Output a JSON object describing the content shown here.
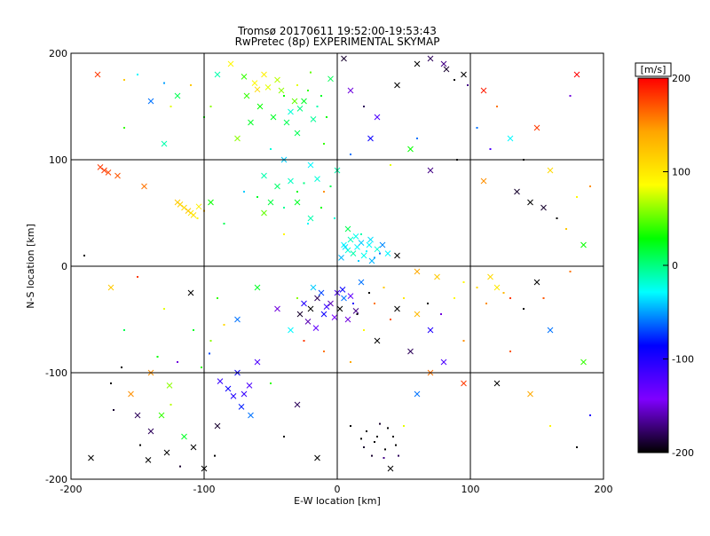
{
  "chart_data": {
    "type": "scatter",
    "title": "Tromsø 20170611 19:52:00-19:53:43",
    "subtitle": "RwPretec (8p) EXPERIMENTAL SKYMAP",
    "xlabel": "E-W location [km]",
    "ylabel": "N-S location [km]",
    "xlim": [
      -200,
      200
    ],
    "ylim": [
      -200,
      200
    ],
    "xticks": [
      "-200",
      "-100",
      "0",
      "100",
      "200"
    ],
    "yticks": [
      "-200",
      "-100",
      "0",
      "100",
      "200"
    ],
    "grid": true,
    "colorbar": {
      "label": "[m/s]",
      "range": [
        -200,
        200
      ],
      "ticks": [
        "200",
        "100",
        "0",
        "-100",
        "-200"
      ],
      "colors": [
        "#ff0000",
        "#ffa500",
        "#ffff00",
        "#00ff00",
        "#00ffff",
        "#0000ff",
        "#7f00ff",
        "#000000"
      ]
    },
    "markers": [
      "dot",
      "cross"
    ],
    "points": [
      [
        -180,
        180,
        180,
        1
      ],
      [
        -160,
        175,
        120,
        0
      ],
      [
        -130,
        172,
        -50,
        0
      ],
      [
        -120,
        160,
        10,
        1
      ],
      [
        -95,
        150,
        60,
        0
      ],
      [
        -80,
        190,
        90,
        1
      ],
      [
        -70,
        178,
        40,
        1
      ],
      [
        -60,
        166,
        110,
        1
      ],
      [
        -55,
        180,
        95,
        1
      ],
      [
        -45,
        175,
        70,
        1
      ],
      [
        -40,
        160,
        30,
        0
      ],
      [
        -35,
        145,
        -20,
        1
      ],
      [
        -30,
        170,
        80,
        0
      ],
      [
        -25,
        155,
        20,
        1
      ],
      [
        -20,
        182,
        50,
        0
      ],
      [
        -15,
        150,
        -10,
        0
      ],
      [
        -5,
        176,
        10,
        1
      ],
      [
        5,
        195,
        -190,
        1
      ],
      [
        10,
        165,
        -150,
        1
      ],
      [
        20,
        150,
        -180,
        0
      ],
      [
        30,
        140,
        -120,
        1
      ],
      [
        45,
        170,
        -200,
        1
      ],
      [
        60,
        120,
        -60,
        0
      ],
      [
        80,
        190,
        -170,
        1
      ],
      [
        95,
        180,
        -200,
        1
      ],
      [
        110,
        165,
        190,
        1
      ],
      [
        120,
        150,
        160,
        0
      ],
      [
        150,
        130,
        180,
        1
      ],
      [
        180,
        180,
        200,
        1
      ],
      [
        175,
        160,
        -150,
        0
      ],
      [
        -160,
        130,
        40,
        0
      ],
      [
        -130,
        115,
        -10,
        1
      ],
      [
        -100,
        140,
        30,
        0
      ],
      [
        -75,
        120,
        60,
        1
      ],
      [
        -65,
        135,
        20,
        1
      ],
      [
        -50,
        110,
        -20,
        0
      ],
      [
        -40,
        100,
        -40,
        1
      ],
      [
        -30,
        125,
        10,
        1
      ],
      [
        -20,
        95,
        -30,
        1
      ],
      [
        -10,
        115,
        40,
        0
      ],
      [
        0,
        90,
        -10,
        1
      ],
      [
        10,
        105,
        -60,
        0
      ],
      [
        25,
        120,
        -90,
        1
      ],
      [
        40,
        95,
        80,
        0
      ],
      [
        55,
        110,
        30,
        1
      ],
      [
        70,
        90,
        -170,
        1
      ],
      [
        90,
        100,
        -200,
        0
      ],
      [
        110,
        80,
        150,
        1
      ],
      [
        135,
        70,
        -190,
        1
      ],
      [
        160,
        90,
        110,
        1
      ],
      [
        -175,
        90,
        180,
        1
      ],
      [
        -165,
        85,
        170,
        1
      ],
      [
        -145,
        75,
        160,
        1
      ],
      [
        -120,
        60,
        120,
        1
      ],
      [
        -115,
        55,
        110,
        1
      ],
      [
        -110,
        50,
        100,
        1
      ],
      [
        -105,
        45,
        90,
        0
      ],
      [
        -95,
        60,
        30,
        1
      ],
      [
        -85,
        40,
        10,
        0
      ],
      [
        -70,
        70,
        -40,
        0
      ],
      [
        -55,
        50,
        50,
        1
      ],
      [
        -40,
        30,
        90,
        0
      ],
      [
        -30,
        60,
        20,
        1
      ],
      [
        -20,
        45,
        -10,
        1
      ],
      [
        -10,
        70,
        150,
        0
      ],
      [
        5,
        20,
        -30,
        1
      ],
      [
        8,
        15,
        -20,
        1
      ],
      [
        12,
        12,
        -10,
        1
      ],
      [
        15,
        18,
        -30,
        1
      ],
      [
        18,
        22,
        -40,
        1
      ],
      [
        20,
        10,
        -25,
        1
      ],
      [
        22,
        14,
        -30,
        0
      ],
      [
        25,
        25,
        -35,
        1
      ],
      [
        28,
        8,
        -50,
        0
      ],
      [
        30,
        16,
        -20,
        1
      ],
      [
        3,
        8,
        -45,
        1
      ],
      [
        10,
        25,
        -15,
        1
      ],
      [
        16,
        5,
        -40,
        0
      ],
      [
        24,
        20,
        -30,
        1
      ],
      [
        32,
        12,
        -60,
        0
      ],
      [
        45,
        10,
        -200,
        1
      ],
      [
        60,
        -5,
        140,
        1
      ],
      [
        75,
        -10,
        120,
        1
      ],
      [
        95,
        -15,
        90,
        0
      ],
      [
        115,
        -10,
        110,
        1
      ],
      [
        120,
        -20,
        100,
        1
      ],
      [
        130,
        -30,
        180,
        0
      ],
      [
        150,
        -15,
        -200,
        1
      ],
      [
        175,
        -5,
        160,
        0
      ],
      [
        185,
        20,
        30,
        1
      ],
      [
        -190,
        10,
        -200,
        0
      ],
      [
        -170,
        -20,
        120,
        1
      ],
      [
        -150,
        -10,
        180,
        0
      ],
      [
        -130,
        -40,
        80,
        0
      ],
      [
        -110,
        -25,
        -200,
        1
      ],
      [
        -90,
        -30,
        40,
        0
      ],
      [
        -75,
        -50,
        -60,
        1
      ],
      [
        -60,
        -20,
        20,
        1
      ],
      [
        -45,
        -40,
        -150,
        1
      ],
      [
        -30,
        -30,
        60,
        0
      ],
      [
        -25,
        -35,
        -100,
        1
      ],
      [
        -20,
        -40,
        -200,
        1
      ],
      [
        -15,
        -30,
        -180,
        1
      ],
      [
        -10,
        -45,
        -90,
        1
      ],
      [
        -5,
        -35,
        -160,
        1
      ],
      [
        0,
        -25,
        -120,
        1
      ],
      [
        2,
        -40,
        -200,
        1
      ],
      [
        5,
        -30,
        -60,
        1
      ],
      [
        8,
        -50,
        -150,
        1
      ],
      [
        12,
        -35,
        -100,
        0
      ],
      [
        15,
        -45,
        -200,
        0
      ],
      [
        -35,
        -60,
        -30,
        1
      ],
      [
        -25,
        -70,
        180,
        0
      ],
      [
        -10,
        -80,
        160,
        0
      ],
      [
        10,
        -90,
        140,
        0
      ],
      [
        20,
        -60,
        90,
        0
      ],
      [
        30,
        -70,
        -200,
        1
      ],
      [
        45,
        -40,
        -200,
        1
      ],
      [
        55,
        -80,
        -180,
        1
      ],
      [
        70,
        -60,
        -100,
        1
      ],
      [
        80,
        -90,
        -120,
        1
      ],
      [
        95,
        -70,
        150,
        0
      ],
      [
        130,
        -80,
        170,
        0
      ],
      [
        160,
        -60,
        -60,
        1
      ],
      [
        185,
        -90,
        40,
        1
      ],
      [
        -170,
        -110,
        -200,
        0
      ],
      [
        -150,
        -140,
        -180,
        1
      ],
      [
        -140,
        -100,
        150,
        1
      ],
      [
        -125,
        -130,
        70,
        0
      ],
      [
        -115,
        -160,
        20,
        1
      ],
      [
        -100,
        -190,
        -200,
        1
      ],
      [
        -90,
        -150,
        -190,
        1
      ],
      [
        -75,
        -100,
        -90,
        1
      ],
      [
        -70,
        -120,
        -110,
        1
      ],
      [
        -65,
        -140,
        -60,
        1
      ],
      [
        -60,
        -90,
        -120,
        1
      ],
      [
        -50,
        -110,
        40,
        0
      ],
      [
        -40,
        -160,
        -200,
        0
      ],
      [
        -30,
        -130,
        -180,
        1
      ],
      [
        -15,
        -180,
        -200,
        1
      ],
      [
        10,
        -150,
        -200,
        0
      ],
      [
        20,
        -170,
        -190,
        0
      ],
      [
        30,
        -160,
        -200,
        0
      ],
      [
        35,
        -180,
        -170,
        0
      ],
      [
        40,
        -190,
        -200,
        1
      ],
      [
        50,
        -150,
        80,
        0
      ],
      [
        60,
        -120,
        -60,
        1
      ],
      [
        70,
        -100,
        160,
        1
      ],
      [
        95,
        -110,
        180,
        1
      ],
      [
        120,
        -110,
        -200,
        1
      ],
      [
        145,
        -120,
        140,
        1
      ],
      [
        160,
        -150,
        90,
        0
      ],
      [
        180,
        -170,
        -200,
        0
      ],
      [
        190,
        -140,
        -100,
        0
      ],
      [
        -185,
        -180,
        -200,
        1
      ],
      [
        -160,
        -60,
        10,
        0
      ],
      [
        -135,
        -85,
        30,
        0
      ],
      [
        -120,
        -90,
        -150,
        0
      ],
      [
        -95,
        -70,
        60,
        0
      ],
      [
        -85,
        -55,
        110,
        0
      ],
      [
        -178,
        93,
        180,
        1
      ],
      [
        -172,
        88,
        175,
        1
      ],
      [
        -118,
        58,
        115,
        1
      ],
      [
        -112,
        52,
        120,
        1
      ],
      [
        -108,
        48,
        105,
        1
      ],
      [
        -104,
        56,
        95,
        1
      ],
      [
        -100,
        52,
        130,
        0
      ],
      [
        -68,
        160,
        40,
        1
      ],
      [
        -58,
        150,
        30,
        1
      ],
      [
        -48,
        140,
        20,
        1
      ],
      [
        -38,
        135,
        10,
        1
      ],
      [
        -28,
        148,
        0,
        1
      ],
      [
        -18,
        138,
        -5,
        1
      ],
      [
        -62,
        172,
        90,
        1
      ],
      [
        -52,
        168,
        80,
        1
      ],
      [
        -42,
        165,
        60,
        1
      ],
      [
        -32,
        155,
        50,
        1
      ],
      [
        -22,
        165,
        40,
        0
      ],
      [
        -12,
        160,
        20,
        0
      ],
      [
        -8,
        140,
        30,
        0
      ],
      [
        -55,
        85,
        -10,
        1
      ],
      [
        -45,
        75,
        5,
        1
      ],
      [
        -35,
        80,
        -15,
        1
      ],
      [
        -25,
        78,
        0,
        0
      ],
      [
        -15,
        82,
        -20,
        1
      ],
      [
        -5,
        75,
        10,
        0
      ],
      [
        -60,
        65,
        20,
        0
      ],
      [
        -50,
        60,
        15,
        1
      ],
      [
        -40,
        55,
        -5,
        0
      ],
      [
        -30,
        70,
        25,
        0
      ],
      [
        -22,
        40,
        -30,
        0
      ],
      [
        -12,
        55,
        30,
        0
      ],
      [
        -2,
        45,
        -20,
        0
      ],
      [
        8,
        35,
        10,
        1
      ],
      [
        18,
        30,
        -10,
        0
      ],
      [
        14,
        28,
        -25,
        1
      ],
      [
        6,
        18,
        -35,
        1
      ],
      [
        26,
        5,
        -45,
        1
      ],
      [
        34,
        20,
        -55,
        1
      ],
      [
        38,
        12,
        -30,
        1
      ],
      [
        -18,
        -20,
        -40,
        1
      ],
      [
        -12,
        -25,
        -70,
        1
      ],
      [
        -8,
        -38,
        -110,
        1
      ],
      [
        -2,
        -48,
        -140,
        1
      ],
      [
        4,
        -22,
        -90,
        1
      ],
      [
        10,
        -28,
        -130,
        1
      ],
      [
        14,
        -42,
        -170,
        1
      ],
      [
        -28,
        -45,
        -190,
        1
      ],
      [
        -22,
        -52,
        -160,
        1
      ],
      [
        -16,
        -58,
        -130,
        1
      ],
      [
        18,
        -15,
        -60,
        1
      ],
      [
        24,
        -25,
        -200,
        0
      ],
      [
        28,
        -35,
        160,
        0
      ],
      [
        35,
        -20,
        120,
        0
      ],
      [
        40,
        -50,
        170,
        0
      ],
      [
        50,
        -30,
        100,
        0
      ],
      [
        60,
        -45,
        130,
        1
      ],
      [
        68,
        -35,
        -200,
        0
      ],
      [
        78,
        -45,
        -150,
        0
      ],
      [
        88,
        -30,
        90,
        0
      ],
      [
        105,
        -20,
        110,
        0
      ],
      [
        112,
        -35,
        150,
        0
      ],
      [
        125,
        -25,
        130,
        0
      ],
      [
        140,
        -40,
        -200,
        0
      ],
      [
        155,
        -30,
        170,
        0
      ],
      [
        -88,
        -108,
        -110,
        1
      ],
      [
        -82,
        -115,
        -90,
        1
      ],
      [
        -78,
        -122,
        -100,
        1
      ],
      [
        -72,
        -132,
        -80,
        1
      ],
      [
        -66,
        -112,
        -120,
        1
      ],
      [
        -96,
        -82,
        -70,
        0
      ],
      [
        -102,
        -95,
        40,
        0
      ],
      [
        -108,
        -60,
        20,
        0
      ],
      [
        -126,
        -112,
        60,
        1
      ],
      [
        -132,
        -140,
        40,
        1
      ],
      [
        -140,
        -155,
        -180,
        1
      ],
      [
        -148,
        -168,
        -200,
        0
      ],
      [
        -155,
        -120,
        150,
        1
      ],
      [
        -162,
        -95,
        -200,
        0
      ],
      [
        -168,
        -135,
        -190,
        0
      ],
      [
        -142,
        -182,
        -200,
        1
      ],
      [
        -128,
        -175,
        -200,
        1
      ],
      [
        -118,
        -188,
        -190,
        0
      ],
      [
        -108,
        -170,
        -200,
        1
      ],
      [
        -92,
        -178,
        -200,
        0
      ],
      [
        22,
        -155,
        -200,
        0
      ],
      [
        28,
        -165,
        -200,
        0
      ],
      [
        32,
        -148,
        -190,
        0
      ],
      [
        36,
        -172,
        -200,
        0
      ],
      [
        42,
        -160,
        -200,
        0
      ],
      [
        46,
        -178,
        -180,
        0
      ],
      [
        18,
        -162,
        -200,
        0
      ],
      [
        26,
        -178,
        -190,
        0
      ],
      [
        38,
        -152,
        -200,
        0
      ],
      [
        44,
        -168,
        -200,
        0
      ],
      [
        60,
        190,
        -200,
        1
      ],
      [
        70,
        195,
        -180,
        1
      ],
      [
        82,
        185,
        -190,
        1
      ],
      [
        88,
        175,
        -200,
        0
      ],
      [
        98,
        170,
        -170,
        0
      ],
      [
        105,
        130,
        -60,
        0
      ],
      [
        115,
        110,
        -120,
        0
      ],
      [
        130,
        120,
        -30,
        1
      ],
      [
        140,
        100,
        -200,
        0
      ],
      [
        145,
        60,
        -200,
        1
      ],
      [
        155,
        55,
        -190,
        1
      ],
      [
        165,
        45,
        -200,
        0
      ],
      [
        172,
        35,
        120,
        0
      ],
      [
        180,
        65,
        90,
        0
      ],
      [
        190,
        75,
        150,
        0
      ],
      [
        -150,
        180,
        -30,
        0
      ],
      [
        -140,
        155,
        -60,
        1
      ],
      [
        -125,
        150,
        80,
        0
      ],
      [
        -110,
        170,
        120,
        0
      ],
      [
        -90,
        180,
        -10,
        1
      ]
    ]
  }
}
